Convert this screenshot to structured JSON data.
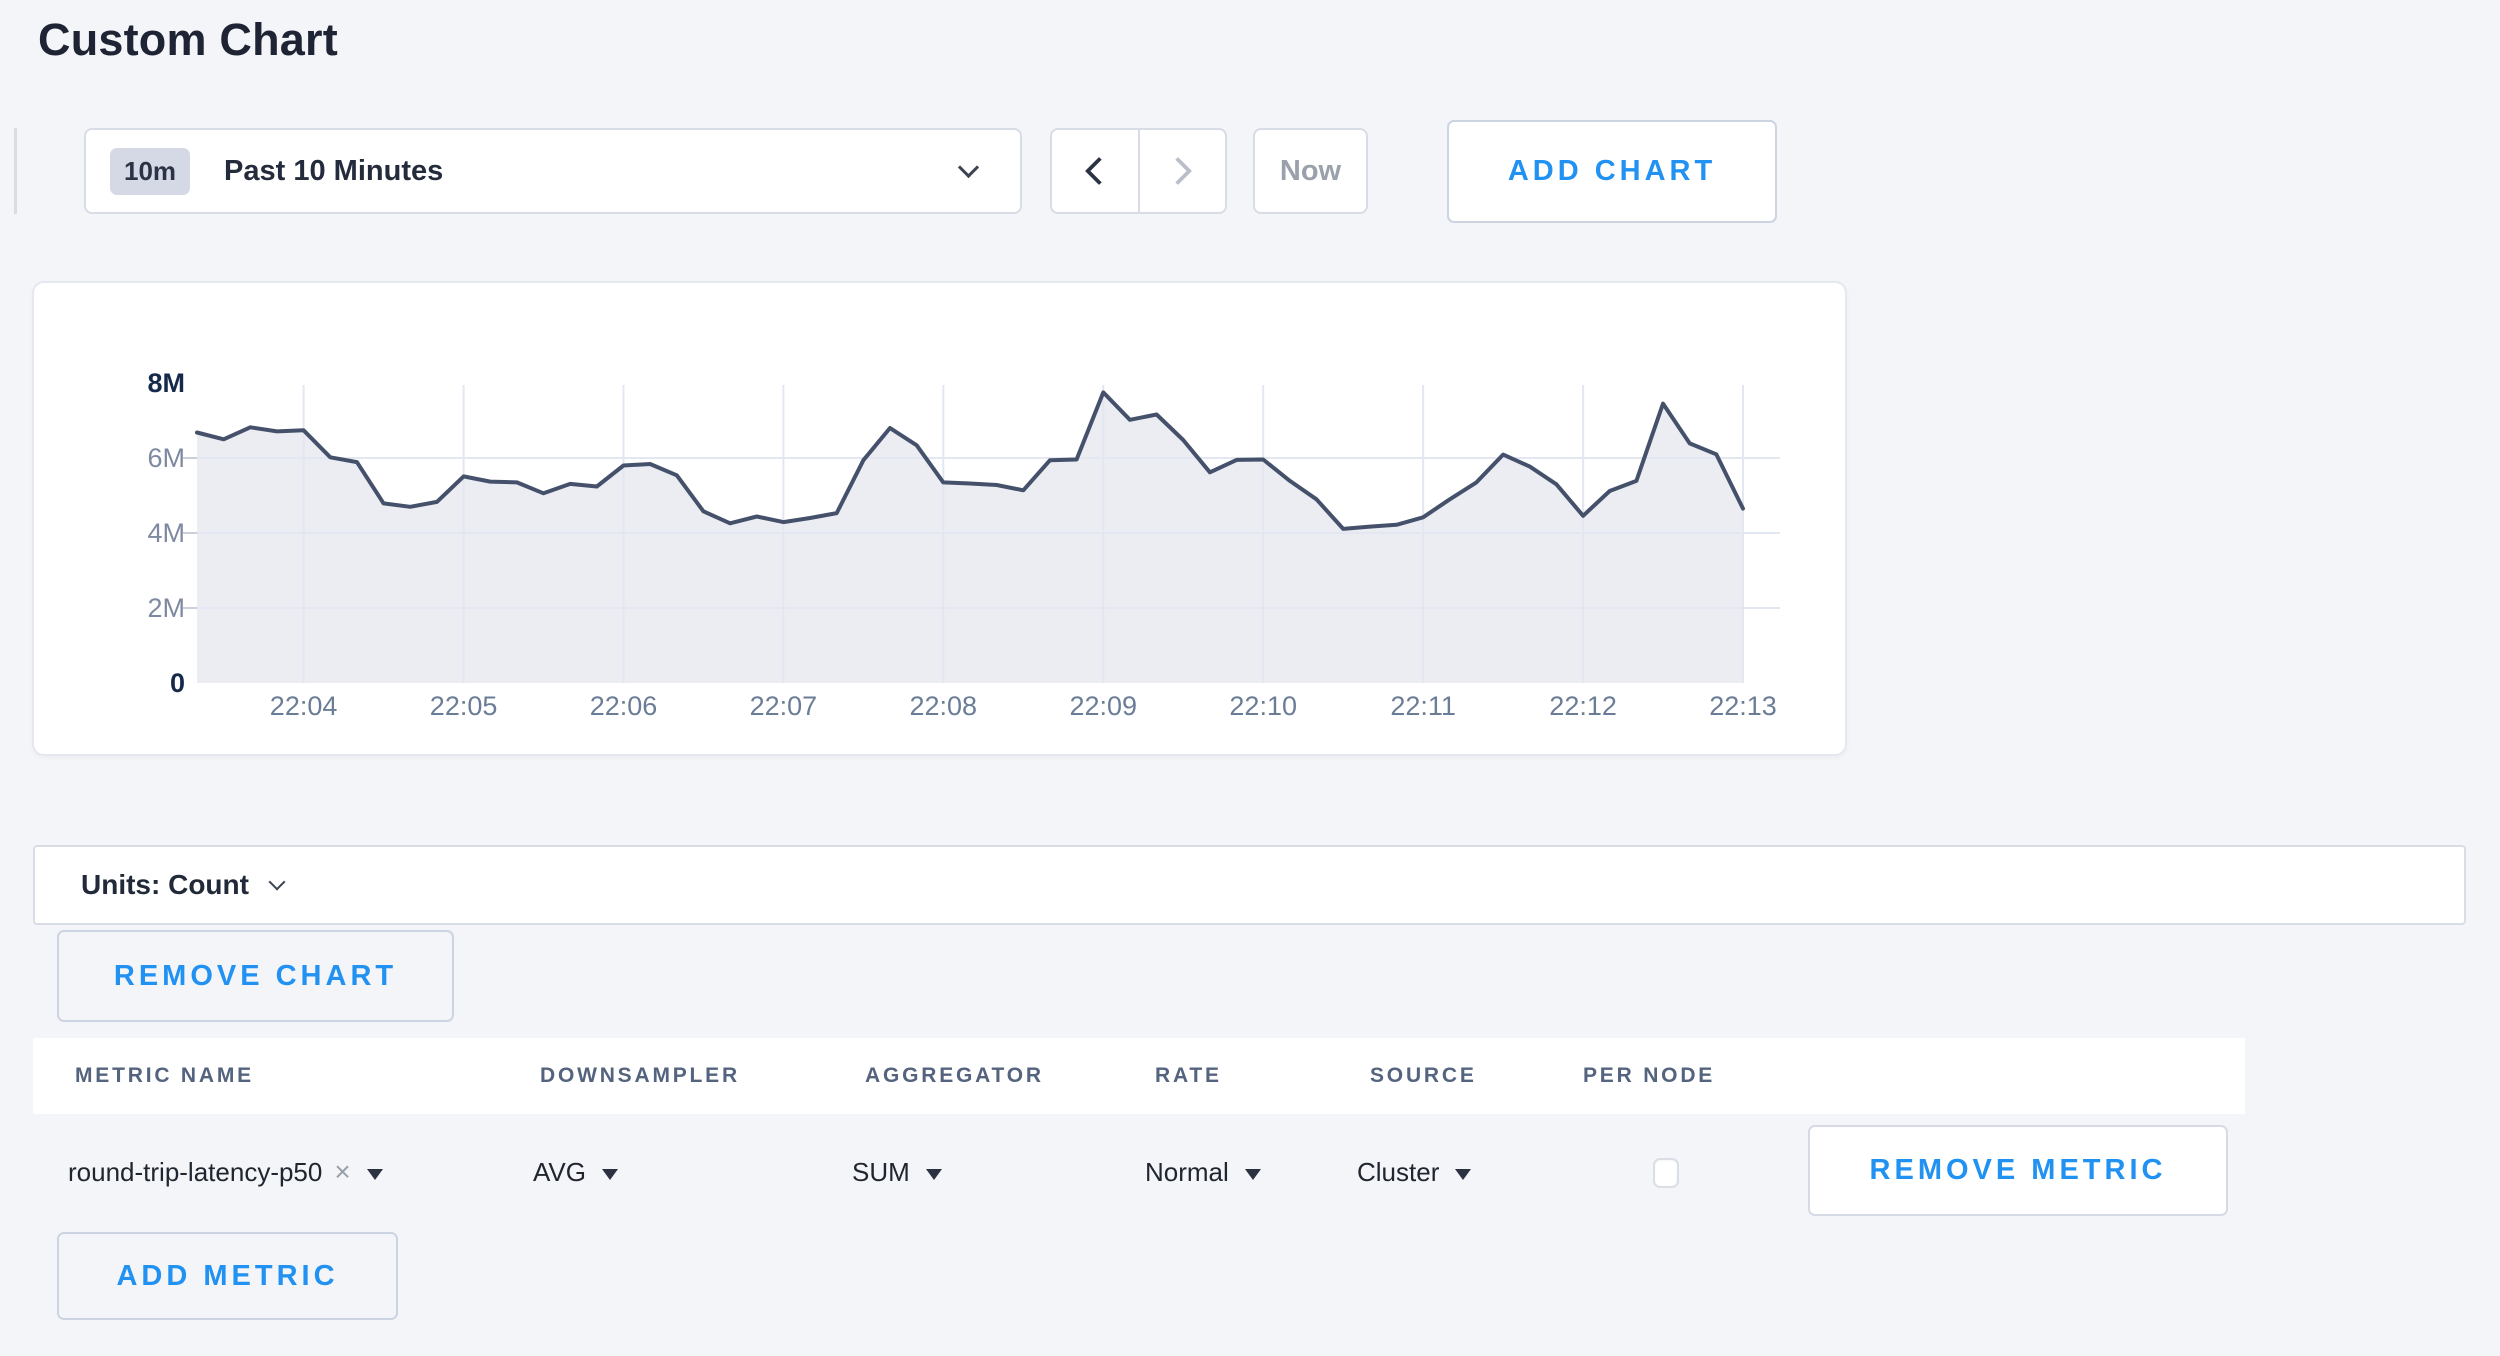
{
  "page": {
    "title": "Custom Chart"
  },
  "colors": {
    "accent_blue": "#2191f2",
    "page_background": "#f4f5f9",
    "card_background": "#ffffff"
  },
  "toolbar": {
    "time_badge": "10m",
    "time_range_label": "Past 10 Minutes",
    "now_label": "Now",
    "add_chart_label": "ADD CHART"
  },
  "units_bar": {
    "label": "Units: Count"
  },
  "chart_actions": {
    "remove_chart_label": "REMOVE CHART"
  },
  "metrics_table": {
    "headers": [
      "METRIC NAME",
      "DOWNSAMPLER",
      "AGGREGATOR",
      "RATE",
      "SOURCE",
      "PER NODE"
    ],
    "rows": [
      {
        "metric_name": "round-trip-latency-p50",
        "clear": "×",
        "downsampler": "AVG",
        "aggregator": "SUM",
        "rate": "Normal",
        "source": "Cluster",
        "per_node_checked": false,
        "remove_label": "REMOVE METRIC"
      }
    ],
    "add_metric_label": "ADD METRIC"
  },
  "chart_data": {
    "type": "area",
    "series_name": "round-trip-latency-p50",
    "title": "",
    "xlabel": "",
    "ylabel": "Count",
    "x_start": "22:03:20",
    "x_end": "22:13:00",
    "interval_seconds": 10,
    "values_millions": [
      6.68,
      6.5,
      6.82,
      6.71,
      6.74,
      6.02,
      5.89,
      4.79,
      4.7,
      4.83,
      5.51,
      5.37,
      5.35,
      5.06,
      5.31,
      5.24,
      5.8,
      5.84,
      5.54,
      4.58,
      4.26,
      4.44,
      4.29,
      4.4,
      4.53,
      5.94,
      6.8,
      6.34,
      5.35,
      5.32,
      5.28,
      5.14,
      5.94,
      5.96,
      7.75,
      7.02,
      7.16,
      6.48,
      5.62,
      5.95,
      5.96,
      5.39,
      4.9,
      4.11,
      4.17,
      4.22,
      4.42,
      4.9,
      5.35,
      6.09,
      5.77,
      5.3,
      4.46,
      5.12,
      5.39,
      7.45,
      6.39,
      6.1,
      4.65
    ],
    "x_ticks": [
      "22:04",
      "22:05",
      "22:06",
      "22:07",
      "22:08",
      "22:09",
      "22:10",
      "22:11",
      "22:12",
      "22:13"
    ],
    "y_ticks": [
      {
        "label": "8M",
        "value": 8,
        "bold": true
      },
      {
        "label": "6M",
        "value": 6,
        "bold": false
      },
      {
        "label": "4M",
        "value": 4,
        "bold": false
      },
      {
        "label": "2M",
        "value": 2,
        "bold": false
      },
      {
        "label": "0",
        "value": 0,
        "bold": true
      }
    ],
    "ylim_millions": [
      0,
      8
    ],
    "grid": true,
    "legend": "none",
    "line_color": "#45516b",
    "fill_color": "#ebedf2",
    "grid_color": "#e2e7f1",
    "tick_mark_color": "#c9cfdd"
  }
}
